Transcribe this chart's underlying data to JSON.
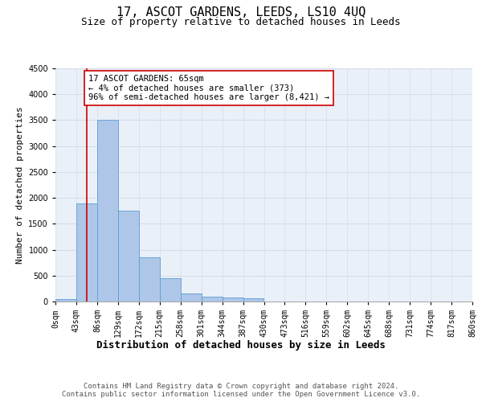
{
  "title": "17, ASCOT GARDENS, LEEDS, LS10 4UQ",
  "subtitle": "Size of property relative to detached houses in Leeds",
  "xlabel": "Distribution of detached houses by size in Leeds",
  "ylabel": "Number of detached properties",
  "bins": [
    0,
    43,
    86,
    129,
    172,
    215,
    258,
    301,
    344,
    387,
    430,
    473,
    516,
    559,
    602,
    645,
    688,
    731,
    774,
    817,
    860
  ],
  "bar_values": [
    50,
    1900,
    3500,
    1750,
    850,
    450,
    150,
    90,
    70,
    60,
    0,
    0,
    0,
    0,
    0,
    0,
    0,
    0,
    0,
    0
  ],
  "bar_color": "#aec6e8",
  "bar_edge_color": "#5a9fd4",
  "vline_x": 65,
  "vline_color": "#cc0000",
  "annotation_text": "17 ASCOT GARDENS: 65sqm\n← 4% of detached houses are smaller (373)\n96% of semi-detached houses are larger (8,421) →",
  "annotation_box_color": "#ffffff",
  "annotation_box_edge": "#cc0000",
  "ylim": [
    0,
    4500
  ],
  "yticks": [
    0,
    500,
    1000,
    1500,
    2000,
    2500,
    3000,
    3500,
    4000,
    4500
  ],
  "grid_color": "#d0d8e8",
  "background_color": "#eaf0f8",
  "footer_text": "Contains HM Land Registry data © Crown copyright and database right 2024.\nContains public sector information licensed under the Open Government Licence v3.0.",
  "title_fontsize": 11,
  "subtitle_fontsize": 9,
  "xlabel_fontsize": 9,
  "ylabel_fontsize": 8,
  "tick_fontsize": 7,
  "annotation_fontsize": 7.5,
  "footer_fontsize": 6.5
}
